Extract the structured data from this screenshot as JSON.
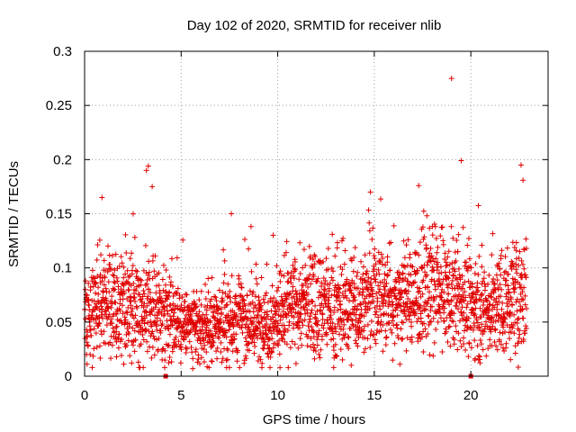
{
  "chart_data": {
    "type": "scatter",
    "title": "Day 102 of 2020, SRMTID for receiver nlib",
    "xlabel": "GPS time / hours",
    "ylabel": "SRMTID / TECUs",
    "xlim": [
      0,
      24
    ],
    "ylim": [
      0,
      0.3
    ],
    "xticks": [
      0,
      5,
      10,
      15,
      20
    ],
    "xtick_labels": [
      "0",
      "5",
      "10",
      "15",
      "20"
    ],
    "yticks": [
      0,
      0.05,
      0.1,
      0.15,
      0.2,
      0.25,
      0.3
    ],
    "ytick_labels": [
      "0",
      "0.05",
      "0.1",
      "0.15",
      "0.2",
      "0.25",
      "0.3"
    ],
    "grid": true,
    "marker": "+",
    "color": "#e00000",
    "x_data_extent": [
      0,
      22.9
    ],
    "series": [
      {
        "name": "SRMTID",
        "representative_points": [
          {
            "x": 3.3,
            "y": 0.194
          },
          {
            "x": 3.2,
            "y": 0.19
          },
          {
            "x": 3.5,
            "y": 0.175
          },
          {
            "x": 0.9,
            "y": 0.165
          },
          {
            "x": 7.6,
            "y": 0.15
          },
          {
            "x": 14.8,
            "y": 0.17
          },
          {
            "x": 17.3,
            "y": 0.176
          },
          {
            "x": 19.0,
            "y": 0.275
          },
          {
            "x": 19.5,
            "y": 0.199
          },
          {
            "x": 22.6,
            "y": 0.195
          },
          {
            "x": 22.7,
            "y": 0.181
          },
          {
            "x": 5.6,
            "y": 0.007
          },
          {
            "x": 9.6,
            "y": 0.008
          },
          {
            "x": 0.1,
            "y": 0.02
          }
        ],
        "hourly_level": {
          "x": [
            0,
            1,
            2,
            3,
            4,
            5,
            6,
            7,
            8,
            9,
            10,
            11,
            12,
            13,
            14,
            15,
            16,
            17,
            18,
            19,
            20,
            21,
            22,
            23
          ],
          "mean": [
            0.055,
            0.068,
            0.065,
            0.062,
            0.06,
            0.05,
            0.042,
            0.05,
            0.055,
            0.047,
            0.055,
            0.065,
            0.07,
            0.06,
            0.065,
            0.075,
            0.07,
            0.075,
            0.08,
            0.075,
            0.065,
            0.06,
            0.07,
            0.075
          ],
          "spread": [
            0.025,
            0.03,
            0.028,
            0.03,
            0.025,
            0.02,
            0.018,
            0.022,
            0.025,
            0.022,
            0.025,
            0.028,
            0.03,
            0.028,
            0.03,
            0.032,
            0.03,
            0.032,
            0.035,
            0.03,
            0.028,
            0.027,
            0.032,
            0.03
          ]
        }
      }
    ],
    "missing_data_markers": [
      {
        "x": 4.2,
        "y": 0
      },
      {
        "x": 20.0,
        "y": 0
      }
    ]
  }
}
